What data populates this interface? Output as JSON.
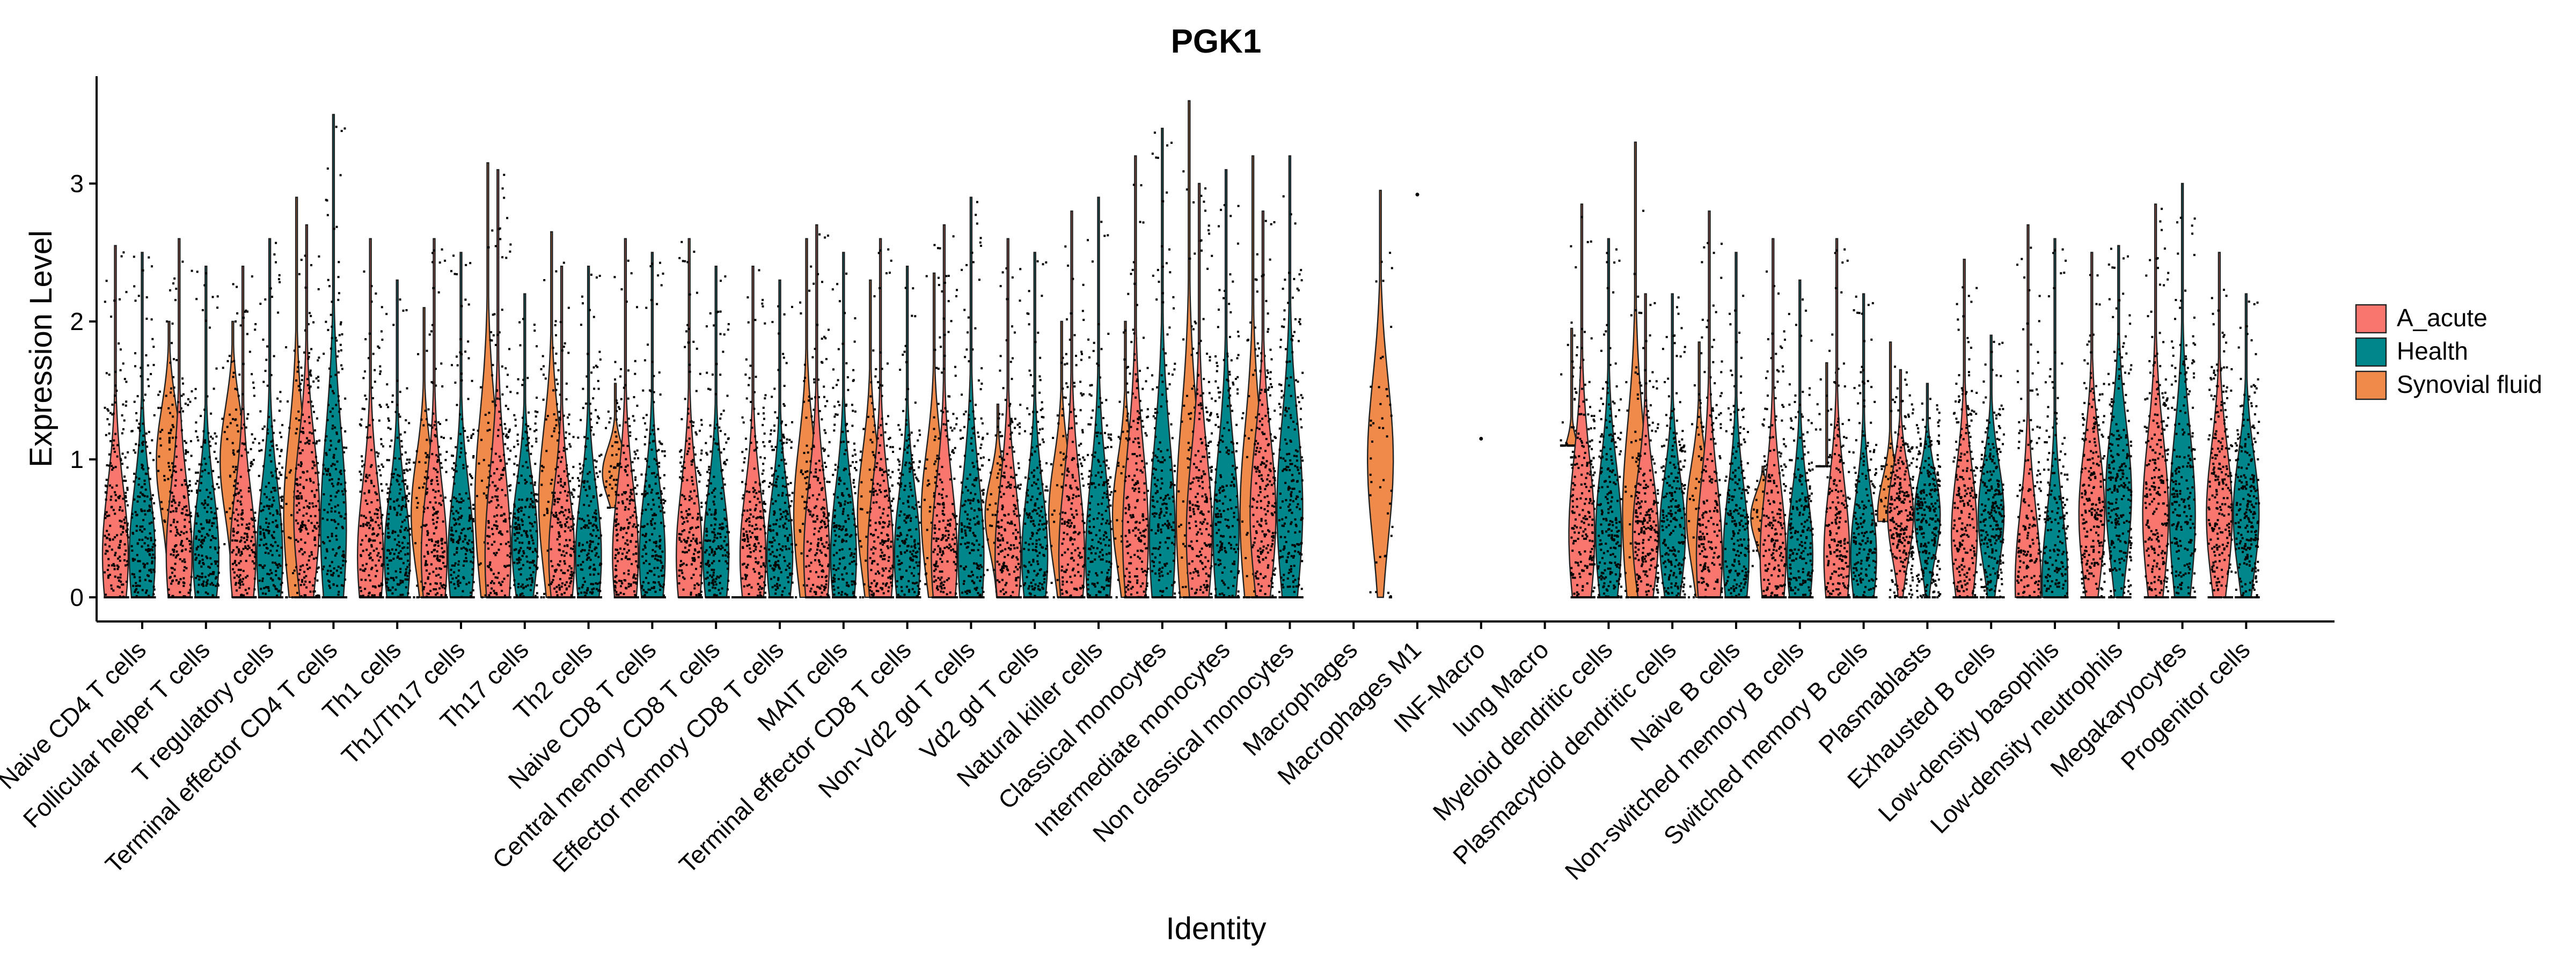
{
  "chart_data": {
    "type": "violin",
    "title": "PGK1",
    "xlabel": "Identity",
    "ylabel": "Expression Level",
    "ylim": [
      -0.2,
      3.9
    ],
    "yticks": [
      "0",
      "1",
      "2",
      "3"
    ],
    "series": [
      {
        "name": "A_acute",
        "color": "#F8766D"
      },
      {
        "name": "Health",
        "color": "#00868B"
      },
      {
        "name": "Synovial fluid",
        "color": "#F08A4B"
      }
    ],
    "legend": {
      "position": "right",
      "items": [
        "A_acute",
        "Health",
        "Synovial fluid"
      ]
    },
    "categories": [
      {
        "label": "Naive CD4 T cells",
        "groups": [
          [
            0,
            2.55,
            0.3
          ],
          [
            0,
            2.5,
            0.3
          ],
          [
            0,
            2.0,
            1.0
          ]
        ]
      },
      {
        "label": "Follicular helper T cells",
        "groups": [
          [
            0,
            2.6,
            0.3
          ],
          [
            0,
            2.4,
            0.3
          ],
          [
            0,
            2.0,
            1.0
          ]
        ]
      },
      {
        "label": "T regulatory cells",
        "groups": [
          [
            0,
            2.4,
            0.3
          ],
          [
            0,
            2.6,
            0.3
          ],
          [
            0,
            2.9,
            0.6
          ]
        ]
      },
      {
        "label": "Terminal effector CD4 T cells",
        "groups": [
          [
            0,
            2.7,
            0.6
          ],
          [
            0,
            3.5,
            0.5
          ],
          null
        ]
      },
      {
        "label": "Th1 cells",
        "groups": [
          [
            0,
            2.6,
            0.3
          ],
          [
            0,
            2.3,
            0.3
          ],
          [
            0,
            2.1,
            0.6
          ]
        ]
      },
      {
        "label": "Th1/Th17 cells",
        "groups": [
          [
            0,
            2.6,
            0.3
          ],
          [
            0,
            2.5,
            0.3
          ],
          [
            0,
            3.15,
            0.7
          ]
        ]
      },
      {
        "label": "Th17 cells",
        "groups": [
          [
            0,
            3.1,
            0.3
          ],
          [
            0,
            2.2,
            0.4
          ],
          [
            0,
            2.65,
            0.7
          ]
        ]
      },
      {
        "label": "Th2 cells",
        "groups": [
          [
            0,
            2.4,
            0.3
          ],
          [
            0,
            2.4,
            0.3
          ],
          [
            0.65,
            1.55,
            0.9
          ]
        ]
      },
      {
        "label": "Naive CD8 T cells",
        "groups": [
          [
            0,
            2.6,
            0.3
          ],
          [
            0,
            2.5,
            0.3
          ],
          null
        ]
      },
      {
        "label": "Central memory CD8 T cells",
        "groups": [
          [
            0,
            2.6,
            0.3
          ],
          [
            0,
            2.4,
            0.3
          ],
          [
            0,
            0,
            0
          ]
        ]
      },
      {
        "label": "Effector memory CD8 T cells",
        "groups": [
          [
            0,
            2.4,
            0.3
          ],
          [
            0,
            2.3,
            0.3
          ],
          [
            0,
            2.6,
            0.6
          ]
        ]
      },
      {
        "label": "MAIT cells",
        "groups": [
          [
            0,
            2.7,
            0.3
          ],
          [
            0,
            2.5,
            0.3
          ],
          [
            0,
            2.3,
            0.6
          ]
        ]
      },
      {
        "label": "Terminal effector CD8 T cells",
        "groups": [
          [
            0,
            2.6,
            0.3
          ],
          [
            0,
            2.4,
            0.3
          ],
          [
            0,
            2.35,
            0.6
          ]
        ]
      },
      {
        "label": "Non-Vd2 gd T cells",
        "groups": [
          [
            0,
            2.7,
            0.3
          ],
          [
            0,
            2.9,
            0.3
          ],
          [
            0,
            1.4,
            0.6
          ]
        ]
      },
      {
        "label": "Vd2 gd T cells",
        "groups": [
          [
            0,
            2.6,
            0.3
          ],
          [
            0,
            2.5,
            0.3
          ],
          [
            0,
            2.0,
            0.6
          ]
        ]
      },
      {
        "label": "Natural killer cells",
        "groups": [
          [
            0,
            2.8,
            0.3
          ],
          [
            0,
            2.9,
            0.3
          ],
          [
            0,
            2.0,
            0.6
          ]
        ]
      },
      {
        "label": "Classical monocytes",
        "groups": [
          [
            0,
            3.2,
            0.45
          ],
          [
            0,
            3.4,
            0.45
          ],
          [
            0,
            3.6,
            0.6
          ]
        ]
      },
      {
        "label": "Intermediate monocytes",
        "groups": [
          [
            0,
            3.0,
            0.45
          ],
          [
            0,
            3.1,
            0.45
          ],
          [
            0,
            3.2,
            0.6
          ]
        ]
      },
      {
        "label": "Non classical monocytes",
        "groups": [
          [
            0,
            2.8,
            0.6
          ],
          [
            0,
            3.2,
            0.65
          ],
          null
        ]
      },
      {
        "label": "Macrophages",
        "groups": [
          null,
          null,
          [
            0,
            2.95,
            1.0
          ]
        ]
      },
      {
        "label": "Macrophages M1",
        "groups": [
          null,
          null,
          null
        ]
      },
      {
        "label": "INF-Macro",
        "groups": [
          null,
          null,
          null
        ]
      },
      {
        "label": "lung Macro",
        "groups": [
          null,
          null,
          [
            1.1,
            1.95,
            0.9
          ]
        ]
      },
      {
        "label": "Myeloid dendritic cells",
        "groups": [
          [
            0,
            2.85,
            0.45
          ],
          [
            0,
            2.6,
            0.45
          ],
          [
            0,
            3.3,
            0.6
          ]
        ]
      },
      {
        "label": "Plasmacytoid dendritic cells",
        "groups": [
          [
            0,
            2.2,
            0.45
          ],
          [
            0,
            2.2,
            0.45
          ],
          [
            0,
            1.85,
            0.6
          ]
        ]
      },
      {
        "label": "Naive B cells",
        "groups": [
          [
            0,
            2.8,
            0.3
          ],
          [
            0,
            2.5,
            0.3
          ],
          [
            0,
            0.95,
            0.6
          ]
        ]
      },
      {
        "label": "Non-switched memory B cells",
        "groups": [
          [
            0,
            2.6,
            0.3
          ],
          [
            0,
            2.3,
            0.3
          ],
          [
            0.95,
            1.7,
            0.6
          ]
        ]
      },
      {
        "label": "Switched memory B cells",
        "groups": [
          [
            0,
            2.6,
            0.3
          ],
          [
            0,
            2.2,
            0.3
          ],
          [
            0.55,
            1.85,
            0.6
          ]
        ]
      },
      {
        "label": "Plasmablasts",
        "groups": [
          [
            0,
            1.65,
            0.6
          ],
          [
            0,
            1.55,
            0.6
          ],
          null
        ]
      },
      {
        "label": "Exhausted B cells",
        "groups": [
          [
            0,
            2.45,
            0.45
          ],
          [
            0,
            1.9,
            0.6
          ],
          null
        ]
      },
      {
        "label": "Low-density basophils",
        "groups": [
          [
            0,
            2.7,
            0.1
          ],
          [
            0,
            2.6,
            0.1
          ],
          null
        ]
      },
      {
        "label": "Low-density neutrophils",
        "groups": [
          [
            0,
            2.5,
            0.6
          ],
          [
            0,
            2.55,
            0.75
          ],
          null
        ]
      },
      {
        "label": "Megakaryocytes",
        "groups": [
          [
            0,
            2.85,
            0.6
          ],
          [
            0,
            3.0,
            0.6
          ],
          null
        ]
      },
      {
        "label": "Progenitor cells",
        "groups": [
          [
            0,
            2.5,
            0.6
          ],
          [
            0,
            2.2,
            0.6
          ],
          null
        ]
      }
    ]
  }
}
